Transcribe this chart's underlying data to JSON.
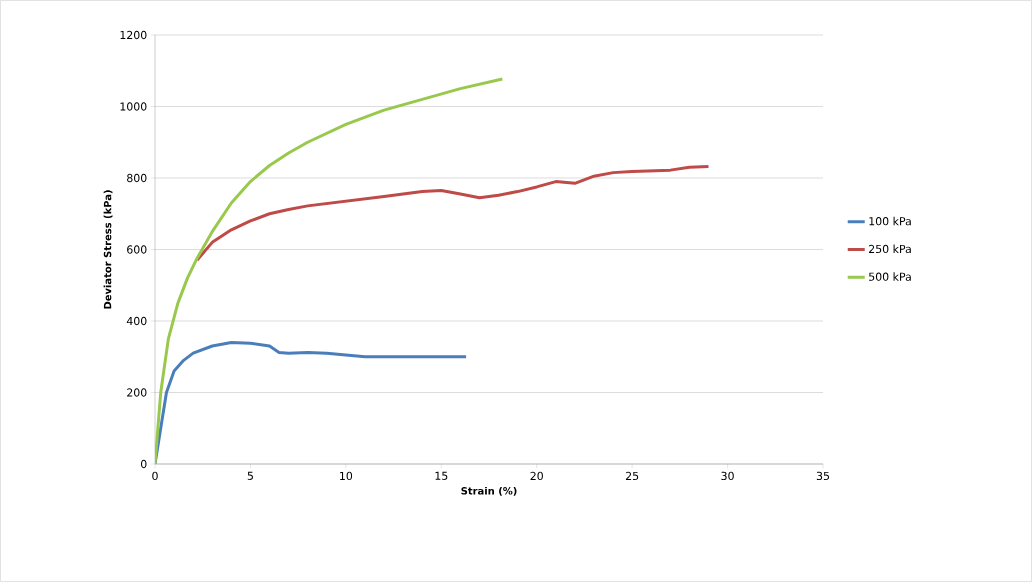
{
  "chart_data": {
    "type": "line",
    "xlabel": "Strain (%)",
    "ylabel": "Deviator Stress (kPa)",
    "xlim": [
      0,
      35
    ],
    "ylim": [
      0,
      1200
    ],
    "xticks": [
      0,
      5,
      10,
      15,
      20,
      25,
      30,
      35
    ],
    "yticks": [
      0,
      200,
      400,
      600,
      800,
      1000,
      1200
    ],
    "grid": "y",
    "legend": "right",
    "marker": "none",
    "line_style": "solid",
    "series": [
      {
        "name": "100 kPa",
        "color": "#4a7ebb",
        "x": [
          0,
          0.3,
          0.6,
          1,
          1.5,
          2,
          3,
          4,
          5,
          6,
          6.5,
          7,
          8,
          9,
          10,
          11,
          12,
          14,
          16.3
        ],
        "values": [
          0,
          100,
          200,
          260,
          290,
          310,
          330,
          340,
          338,
          330,
          312,
          310,
          312,
          310,
          305,
          300,
          300,
          300,
          300
        ]
      },
      {
        "name": "250 kPa",
        "color": "#be4b48",
        "x": [
          2.2,
          3,
          4,
          5,
          6,
          7,
          8,
          10,
          12,
          14,
          15,
          16,
          17,
          18,
          19,
          20,
          21,
          22,
          23,
          24,
          25,
          27,
          28,
          29
        ],
        "values": [
          570,
          620,
          655,
          680,
          700,
          712,
          722,
          735,
          748,
          762,
          765,
          755,
          745,
          752,
          762,
          775,
          790,
          785,
          805,
          815,
          818,
          822,
          830,
          832
        ]
      },
      {
        "name": "500 kPa",
        "color": "#98c84c",
        "x": [
          0,
          0.3,
          0.7,
          1.2,
          1.7,
          2.2,
          3,
          4,
          5,
          6,
          7,
          8,
          10,
          12,
          14,
          16,
          18.2
        ],
        "values": [
          0,
          200,
          350,
          450,
          520,
          575,
          650,
          730,
          790,
          835,
          870,
          900,
          950,
          990,
          1020,
          1050,
          1077
        ]
      }
    ]
  }
}
